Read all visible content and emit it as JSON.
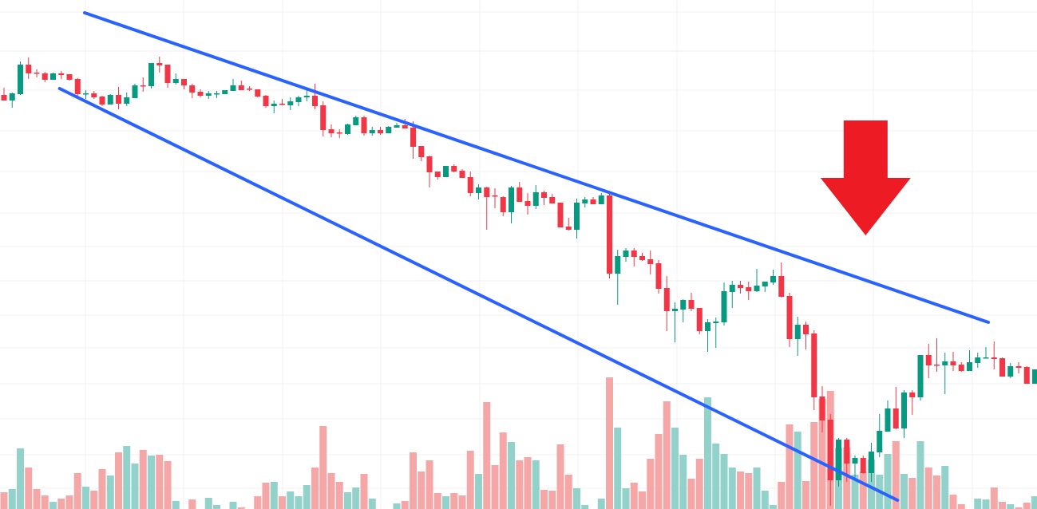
{
  "chart_data": {
    "type": "candlestick",
    "title": "",
    "xlabel": "",
    "ylabel": "",
    "ylim": [
      0,
      64
    ],
    "grid": true,
    "legend": "none",
    "colors": {
      "up": "#089981",
      "down": "#f23645",
      "volume_up": "#92d2ca",
      "volume_down": "#f5a6a6",
      "trendline": "#2962ff",
      "arrow": "#ed1c24"
    },
    "candles_ohlc": [
      [
        52.1,
        53.0,
        51.4,
        51.4
      ],
      [
        51.4,
        52.4,
        50.5,
        52.3
      ],
      [
        52.2,
        56.3,
        52.1,
        55.9
      ],
      [
        55.9,
        56.8,
        54.1,
        54.8
      ],
      [
        54.9,
        55.3,
        54.3,
        54.8
      ],
      [
        54.8,
        55.0,
        53.7,
        54.0
      ],
      [
        54.0,
        54.9,
        54.0,
        54.8
      ],
      [
        54.8,
        55.1,
        54.1,
        54.6
      ],
      [
        54.7,
        54.7,
        53.9,
        54.0
      ],
      [
        54.1,
        54.2,
        51.8,
        52.2
      ],
      [
        52.2,
        52.7,
        51.6,
        52.3
      ],
      [
        52.3,
        52.6,
        51.6,
        51.8
      ],
      [
        51.9,
        52.0,
        50.7,
        50.9
      ],
      [
        50.9,
        52.2,
        50.9,
        52.1
      ],
      [
        52.1,
        53.1,
        50.3,
        51.0
      ],
      [
        51.0,
        52.4,
        50.7,
        51.8
      ],
      [
        51.7,
        53.5,
        51.7,
        53.3
      ],
      [
        53.3,
        54.3,
        52.5,
        53.2
      ],
      [
        53.2,
        56.1,
        52.9,
        56.1
      ],
      [
        56.1,
        56.9,
        54.9,
        55.8
      ],
      [
        55.9,
        55.9,
        53.0,
        53.6
      ],
      [
        53.6,
        54.8,
        53.4,
        54.1
      ],
      [
        54.1,
        54.1,
        52.8,
        53.3
      ],
      [
        53.3,
        53.5,
        51.7,
        52.4
      ],
      [
        52.5,
        52.8,
        51.8,
        52.0
      ],
      [
        52.0,
        52.6,
        51.6,
        52.3
      ],
      [
        52.2,
        52.6,
        51.7,
        52.3
      ],
      [
        52.2,
        52.7,
        52.2,
        52.7
      ],
      [
        52.6,
        54.1,
        52.6,
        53.3
      ],
      [
        53.3,
        53.9,
        52.7,
        52.7
      ],
      [
        52.9,
        53.2,
        52.6,
        52.8
      ],
      [
        52.8,
        52.8,
        51.8,
        51.9
      ],
      [
        52.0,
        52.1,
        50.5,
        50.7
      ],
      [
        50.7,
        51.4,
        49.8,
        51.0
      ],
      [
        51.0,
        51.6,
        50.8,
        50.9
      ],
      [
        50.8,
        51.8,
        50.2,
        51.3
      ],
      [
        51.2,
        52.0,
        50.7,
        51.8
      ],
      [
        51.8,
        52.8,
        51.3,
        52.0
      ],
      [
        52.0,
        53.5,
        50.3,
        50.7
      ],
      [
        50.8,
        51.3,
        46.9,
        47.7
      ],
      [
        47.8,
        48.4,
        46.8,
        47.3
      ],
      [
        47.4,
        47.8,
        46.7,
        47.3
      ],
      [
        47.2,
        48.5,
        47.1,
        48.4
      ],
      [
        48.3,
        49.5,
        48.3,
        49.3
      ],
      [
        49.3,
        49.5,
        47.0,
        47.3
      ],
      [
        47.3,
        48.1,
        47.0,
        47.7
      ],
      [
        47.7,
        48.1,
        47.1,
        47.3
      ],
      [
        47.3,
        48.2,
        47.3,
        48.1
      ],
      [
        48.0,
        48.6,
        48.0,
        48.3
      ],
      [
        48.3,
        49.1,
        47.9,
        47.9
      ],
      [
        48.0,
        48.8,
        44.1,
        45.6
      ],
      [
        45.7,
        45.7,
        43.8,
        44.3
      ],
      [
        44.4,
        44.5,
        40.5,
        42.4
      ],
      [
        42.5,
        42.5,
        41.5,
        41.8
      ],
      [
        41.8,
        43.2,
        41.8,
        43.2
      ],
      [
        43.2,
        43.4,
        42.4,
        42.5
      ],
      [
        42.6,
        42.8,
        41.7,
        41.7
      ],
      [
        41.8,
        42.5,
        39.4,
        39.8
      ],
      [
        39.8,
        40.9,
        39.0,
        40.5
      ],
      [
        40.5,
        40.6,
        35.2,
        39.3
      ],
      [
        39.5,
        40.4,
        37.9,
        39.4
      ],
      [
        39.3,
        39.4,
        36.9,
        37.4
      ],
      [
        37.4,
        40.7,
        36.0,
        40.5
      ],
      [
        40.5,
        41.2,
        38.7,
        38.7
      ],
      [
        38.8,
        39.8,
        37.1,
        38.2
      ],
      [
        38.2,
        40.8,
        37.8,
        39.9
      ],
      [
        39.9,
        40.1,
        38.3,
        39.2
      ],
      [
        39.3,
        39.7,
        38.5,
        38.5
      ],
      [
        38.6,
        38.6,
        35.5,
        35.5
      ],
      [
        35.6,
        36.7,
        35.1,
        35.2
      ],
      [
        35.2,
        39.1,
        34.1,
        38.6
      ],
      [
        38.5,
        39.3,
        38.0,
        39.0
      ],
      [
        39.0,
        39.3,
        38.4,
        38.4
      ],
      [
        38.4,
        39.8,
        38.4,
        39.5
      ],
      [
        39.5,
        40.0,
        29.1,
        29.7
      ],
      [
        29.7,
        32.7,
        25.8,
        31.9
      ],
      [
        31.8,
        32.9,
        31.2,
        32.6
      ],
      [
        32.6,
        32.9,
        30.6,
        31.8
      ],
      [
        31.9,
        32.3,
        31.3,
        31.4
      ],
      [
        31.5,
        32.6,
        29.6,
        30.9
      ],
      [
        31.0,
        31.4,
        27.2,
        27.8
      ],
      [
        27.9,
        29.4,
        22.5,
        25.0
      ],
      [
        25.0,
        26.1,
        21.1,
        25.3
      ],
      [
        25.2,
        26.5,
        23.6,
        26.4
      ],
      [
        26.4,
        27.3,
        25.0,
        25.3
      ],
      [
        25.4,
        25.4,
        22.1,
        22.5
      ],
      [
        22.5,
        24.0,
        19.9,
        23.6
      ],
      [
        23.5,
        24.2,
        20.4,
        23.7
      ],
      [
        23.6,
        28.6,
        23.2,
        27.5
      ],
      [
        27.4,
        28.8,
        25.4,
        28.3
      ],
      [
        28.3,
        28.8,
        27.2,
        27.9
      ],
      [
        28.0,
        28.7,
        26.4,
        27.5
      ],
      [
        27.5,
        30.3,
        27.4,
        28.2
      ],
      [
        28.1,
        28.7,
        27.4,
        28.7
      ],
      [
        28.6,
        30.2,
        28.3,
        29.4
      ],
      [
        29.4,
        31.1,
        26.7,
        26.8
      ],
      [
        26.9,
        27.3,
        20.5,
        21.5
      ],
      [
        21.5,
        24.3,
        19.4,
        23.3
      ],
      [
        23.3,
        23.7,
        20.2,
        22.1
      ],
      [
        22.2,
        22.6,
        12.6,
        14.2
      ],
      [
        14.3,
        15.6,
        9.8,
        11.3
      ],
      [
        11.4,
        12.1,
        0.6,
        3.8
      ],
      [
        3.8,
        9.1,
        3.0,
        8.9
      ],
      [
        8.9,
        9.1,
        3.6,
        5.9
      ],
      [
        5.9,
        6.9,
        4.1,
        6.6
      ],
      [
        6.6,
        6.9,
        4.6,
        4.7
      ],
      [
        4.7,
        8.5,
        3.6,
        7.4
      ],
      [
        7.3,
        12.1,
        6.7,
        10.0
      ],
      [
        9.9,
        13.8,
        9.9,
        12.8
      ],
      [
        12.8,
        15.5,
        10.2,
        10.3
      ],
      [
        10.3,
        15.1,
        9.1,
        14.8
      ],
      [
        14.8,
        15.1,
        12.0,
        14.2
      ],
      [
        14.2,
        19.5,
        13.8,
        19.5
      ],
      [
        19.5,
        20.9,
        16.6,
        18.2
      ],
      [
        18.3,
        21.6,
        17.4,
        18.2
      ],
      [
        18.2,
        19.8,
        14.6,
        18.7
      ],
      [
        18.7,
        19.9,
        17.5,
        18.2
      ],
      [
        18.3,
        18.6,
        17.4,
        17.5
      ],
      [
        17.5,
        20.1,
        17.5,
        18.6
      ],
      [
        18.5,
        19.8,
        17.9,
        19.2
      ],
      [
        19.1,
        20.5,
        19.1,
        19.2
      ],
      [
        19.2,
        21.2,
        17.7,
        19.0
      ],
      [
        19.1,
        19.2,
        16.8,
        16.8
      ],
      [
        16.8,
        18.5,
        16.6,
        18.1
      ],
      [
        18.1,
        18.6,
        17.2,
        17.9
      ],
      [
        18.0,
        18.1,
        15.9,
        15.9
      ],
      [
        15.9,
        17.7,
        15.9,
        17.7
      ]
    ],
    "volume": [
      21,
      25,
      76,
      52,
      25,
      17,
      9,
      13,
      17,
      45,
      28,
      23,
      50,
      42,
      71,
      79,
      57,
      74,
      67,
      68,
      60,
      10,
      0,
      12,
      0,
      14,
      5,
      0,
      9,
      2,
      0,
      16,
      33,
      34,
      16,
      22,
      16,
      30,
      52,
      104,
      45,
      34,
      21,
      27,
      44,
      13,
      0,
      0,
      7,
      10,
      71,
      47,
      61,
      20,
      16,
      20,
      17,
      73,
      44,
      134,
      55,
      96,
      84,
      61,
      65,
      61,
      24,
      23,
      81,
      43,
      26,
      5,
      0,
      13,
      165,
      102,
      26,
      33,
      22,
      63,
      94,
      135,
      102,
      68,
      38,
      63,
      140,
      82,
      69,
      52,
      47,
      45,
      52,
      23,
      5,
      34,
      106,
      97,
      35,
      109,
      138,
      148,
      77,
      77,
      43,
      47,
      62,
      43,
      69,
      85,
      44,
      39,
      85,
      52,
      42,
      54,
      18,
      6,
      0,
      13,
      12,
      27,
      9,
      6,
      2,
      8,
      16
    ],
    "annotations": {
      "trendlines": [
        {
          "name": "upper",
          "from": [
            9.85,
            62.4
          ],
          "to": [
            120.3,
            23.6
          ]
        },
        {
          "name": "lower",
          "from": [
            6.8,
            52.9
          ],
          "to": [
            109.2,
            1.3
          ]
        }
      ],
      "arrow": {
        "direction": "down",
        "at_index": 105.3,
        "from_price": 48.9,
        "to_price": 34.5
      }
    }
  }
}
